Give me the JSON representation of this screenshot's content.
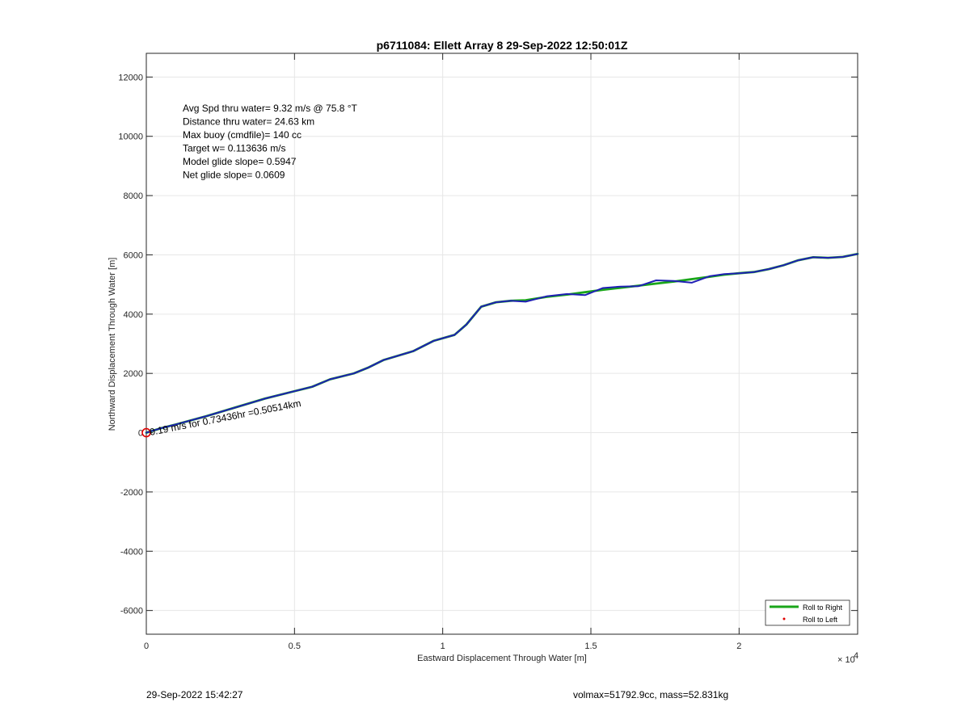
{
  "chart_data": {
    "type": "line",
    "title": "p6711084: Ellett Array 8 29-Sep-2022 12:50:01Z",
    "xlabel": "Eastward Displacement Through Water [m]",
    "ylabel": "Northward Displacement Through Water [m]",
    "x_exponent_label": "× 10",
    "x_exponent_power": "4",
    "xlim": [
      0,
      24000
    ],
    "ylim": [
      -6800,
      12800
    ],
    "x_ticks": [
      0,
      5000,
      10000,
      15000,
      20000
    ],
    "x_tick_labels": [
      "0",
      "0.5",
      "1",
      "1.5",
      "2"
    ],
    "y_ticks": [
      -6000,
      -4000,
      -2000,
      0,
      2000,
      4000,
      6000,
      8000,
      10000,
      12000
    ],
    "y_tick_labels": [
      "-6000",
      "-4000",
      "-2000",
      "0",
      "2000",
      "4000",
      "6000",
      "8000",
      "10000",
      "12000"
    ],
    "grid": true,
    "legend_position": "bottom-right",
    "annotations": [
      "Avg Spd thru water=  9.32 m/s @  75.8 °T",
      "Distance thru water= 24.63 km",
      "Max buoy (cmdfile)= 140 cc",
      "Target w= 0.113636 m/s",
      "Model glide slope= 0.5947",
      "Net glide slope= 0.0609"
    ],
    "segment_label": "0.19 m/s for 0.73436hr =0.50514km",
    "series": [
      {
        "name": "Roll to Right",
        "color": "#1aa61a",
        "x": [
          0,
          500,
          1000,
          2000,
          3000,
          4000,
          5000,
          5600,
          6200,
          7000,
          7500,
          8000,
          9000,
          9700,
          10400,
          10800,
          11300,
          11800,
          12300,
          12800,
          13500,
          14200,
          14800,
          15400,
          16000,
          16600,
          17200,
          17800,
          18400,
          19000,
          19500,
          20000,
          20500,
          21000,
          21500,
          22000,
          22500,
          23000,
          23500,
          24000
        ],
        "y": [
          0,
          150,
          280,
          550,
          850,
          1150,
          1400,
          1550,
          1800,
          2000,
          2200,
          2450,
          2750,
          3100,
          3300,
          3650,
          4250,
          4400,
          4450,
          4470,
          4580,
          4660,
          4740,
          4820,
          4890,
          4960,
          5030,
          5100,
          5180,
          5260,
          5330,
          5380,
          5420,
          5520,
          5650,
          5820,
          5920,
          5900,
          5930,
          6030
        ]
      },
      {
        "name": "",
        "color": "#1f1fb4",
        "x": [
          0,
          500,
          1000,
          2000,
          3000,
          4000,
          5000,
          5600,
          6200,
          7000,
          7500,
          8000,
          9000,
          9700,
          10400,
          10800,
          11300,
          11800,
          12300,
          12800,
          13500,
          14200,
          14800,
          15400,
          16000,
          16600,
          17200,
          17800,
          18400,
          19000,
          19500,
          20000,
          20500,
          21000,
          21500,
          22000,
          22500,
          23000,
          23500,
          24000
        ],
        "y": [
          0,
          150,
          280,
          550,
          850,
          1150,
          1400,
          1550,
          1800,
          2000,
          2200,
          2450,
          2750,
          3100,
          3300,
          3650,
          4250,
          4400,
          4450,
          4420,
          4600,
          4680,
          4640,
          4880,
          4930,
          4940,
          5140,
          5120,
          5060,
          5280,
          5350,
          5380,
          5420,
          5520,
          5650,
          5820,
          5920,
          5900,
          5930,
          6030
        ]
      },
      {
        "name": "Roll to Left",
        "color": "#e00000",
        "marker": "dot",
        "x": [
          0
        ],
        "y": [
          0
        ]
      }
    ],
    "footer_left": "29-Sep-2022 15:42:27",
    "footer_right": "volmax=51792.9cc, mass=52.831kg"
  }
}
